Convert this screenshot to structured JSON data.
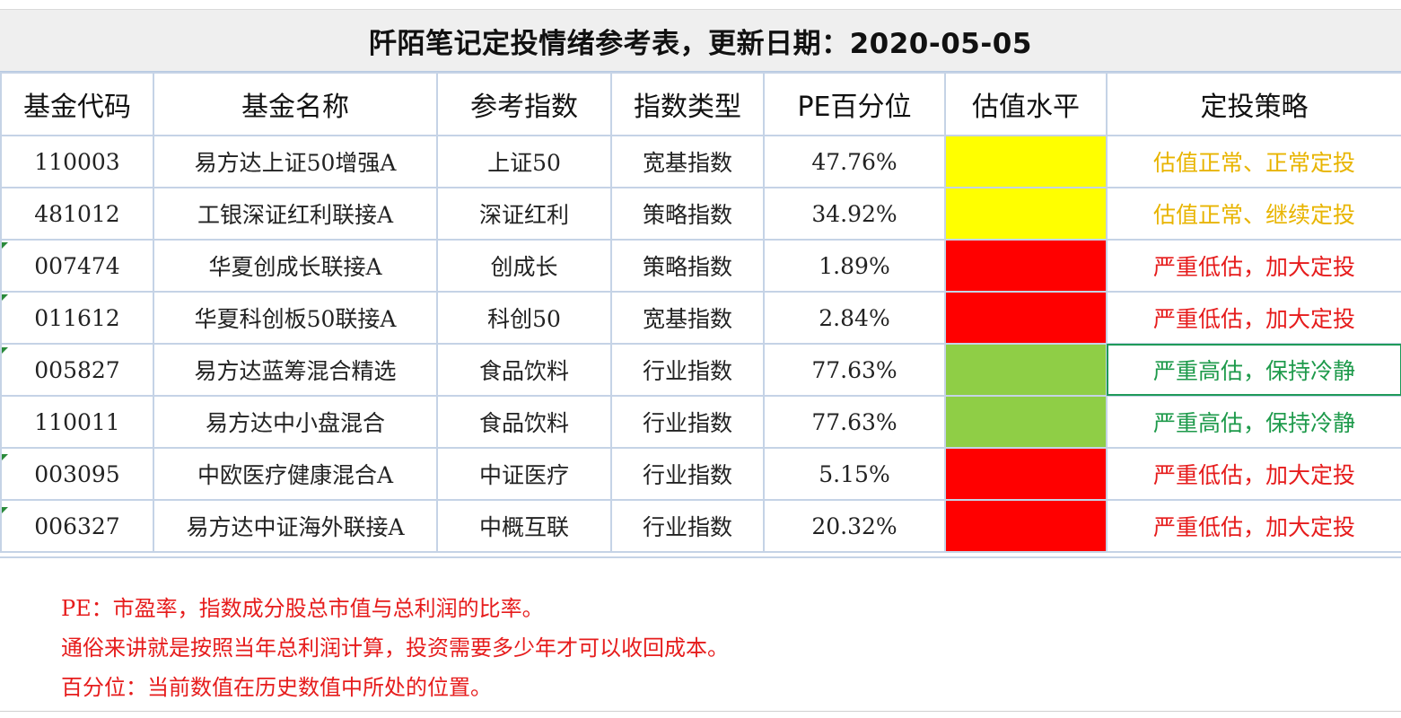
{
  "title": "阡陌笔记定投情绪参考表，更新日期：2020-05-05",
  "headers": {
    "code": "基金代码",
    "name": "基金名称",
    "index": "参考指数",
    "type": "指数类型",
    "pe": "PE百分位",
    "level": "估值水平",
    "strategy": "定投策略"
  },
  "rows": [
    {
      "code": "110003",
      "name": "易方达上证50增强A",
      "index": "上证50",
      "type": "宽基指数",
      "pe": "47.76%",
      "level_color": "#ffff00",
      "strategy": "估值正常、正常定投",
      "strategy_color": "#e8b400"
    },
    {
      "code": "481012",
      "name": "工银深证红利联接A",
      "index": "深证红利",
      "type": "策略指数",
      "pe": "34.92%",
      "level_color": "#ffff00",
      "strategy": "估值正常、继续定投",
      "strategy_color": "#e8b400"
    },
    {
      "code": "007474",
      "name": "华夏创成长联接A",
      "index": "创成长",
      "type": "策略指数",
      "pe": "1.89%",
      "level_color": "#ff0000",
      "strategy": "严重低估，加大定投",
      "strategy_color": "#e61c1c"
    },
    {
      "code": "011612",
      "name": "华夏科创板50联接A",
      "index": "科创50",
      "type": "宽基指数",
      "pe": "2.84%",
      "level_color": "#ff0000",
      "strategy": "严重低估，加大定投",
      "strategy_color": "#e61c1c"
    },
    {
      "code": "005827",
      "name": "易方达蓝筹混合精选",
      "index": "食品饮料",
      "type": "行业指数",
      "pe": "77.63%",
      "level_color": "#8fce46",
      "strategy": "严重高估，保持冷静",
      "strategy_color": "#1e9a4b"
    },
    {
      "code": "110011",
      "name": "易方达中小盘混合",
      "index": "食品饮料",
      "type": "行业指数",
      "pe": "77.63%",
      "level_color": "#8fce46",
      "strategy": "严重高估，保持冷静",
      "strategy_color": "#1e9a4b"
    },
    {
      "code": "003095",
      "name": "中欧医疗健康混合A",
      "index": "中证医疗",
      "type": "行业指数",
      "pe": "5.15%",
      "level_color": "#ff0000",
      "strategy": "严重低估，加大定投",
      "strategy_color": "#e61c1c"
    },
    {
      "code": "006327",
      "name": "易方达中证海外联接A",
      "index": "中概互联",
      "type": "行业指数",
      "pe": "20.32%",
      "level_color": "#ff0000",
      "strategy": "严重低估，加大定投",
      "strategy_color": "#e61c1c"
    }
  ],
  "notes": [
    "PE：市盈率，指数成分股总市值与总利润的比率。",
    "通俗来讲就是按照当年总利润计算，投资需要多少年才可以收回成本。",
    "百分位：当前数值在历史数值中所处的位置。"
  ]
}
